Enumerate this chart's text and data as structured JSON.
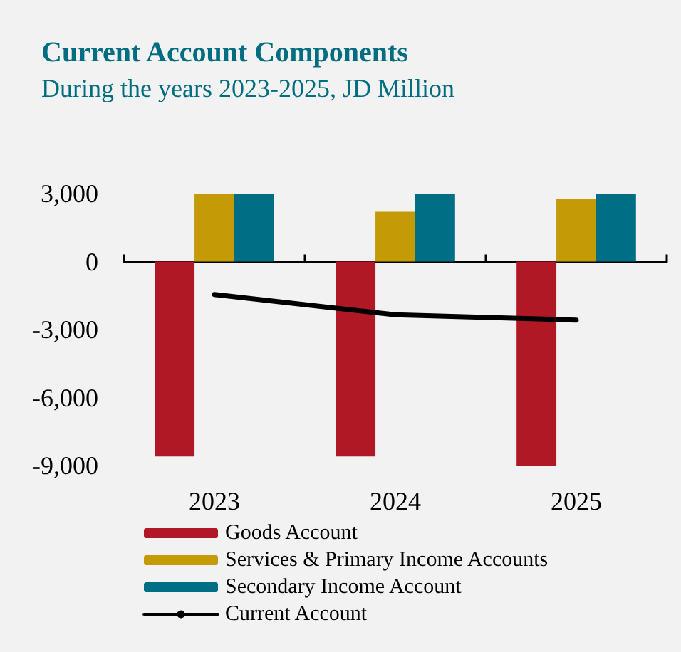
{
  "chart_data": {
    "type": "bar",
    "title": "Current Account Components",
    "subtitle": "During the years 2023-2025, JD Million",
    "categories": [
      "2023",
      "2024",
      "2025"
    ],
    "series": [
      {
        "name": "Goods Account",
        "color": "#b01825",
        "values": [
          -8600,
          -8600,
          -9000
        ]
      },
      {
        "name": "Services & Primary Income Accounts",
        "color": "#c49a06",
        "values": [
          3000,
          2200,
          2750
        ]
      },
      {
        "name": "Secondary Income Account",
        "color": "#006e85",
        "values": [
          3000,
          3000,
          3000
        ]
      },
      {
        "name": "Current Account",
        "type": "line",
        "color": "#000000",
        "values": [
          -1450,
          -2350,
          -2580
        ]
      }
    ],
    "ylim": [
      -9000,
      3000
    ],
    "yticks": [
      {
        "value": -9000,
        "label": "-9,000"
      },
      {
        "value": -6000,
        "label": "-6,000"
      },
      {
        "value": -3000,
        "label": "-3,000"
      },
      {
        "value": 0,
        "label": "0"
      },
      {
        "value": 3000,
        "label": "3,000"
      }
    ],
    "legend": "bottom",
    "marker": "none",
    "line_style": "solid"
  }
}
